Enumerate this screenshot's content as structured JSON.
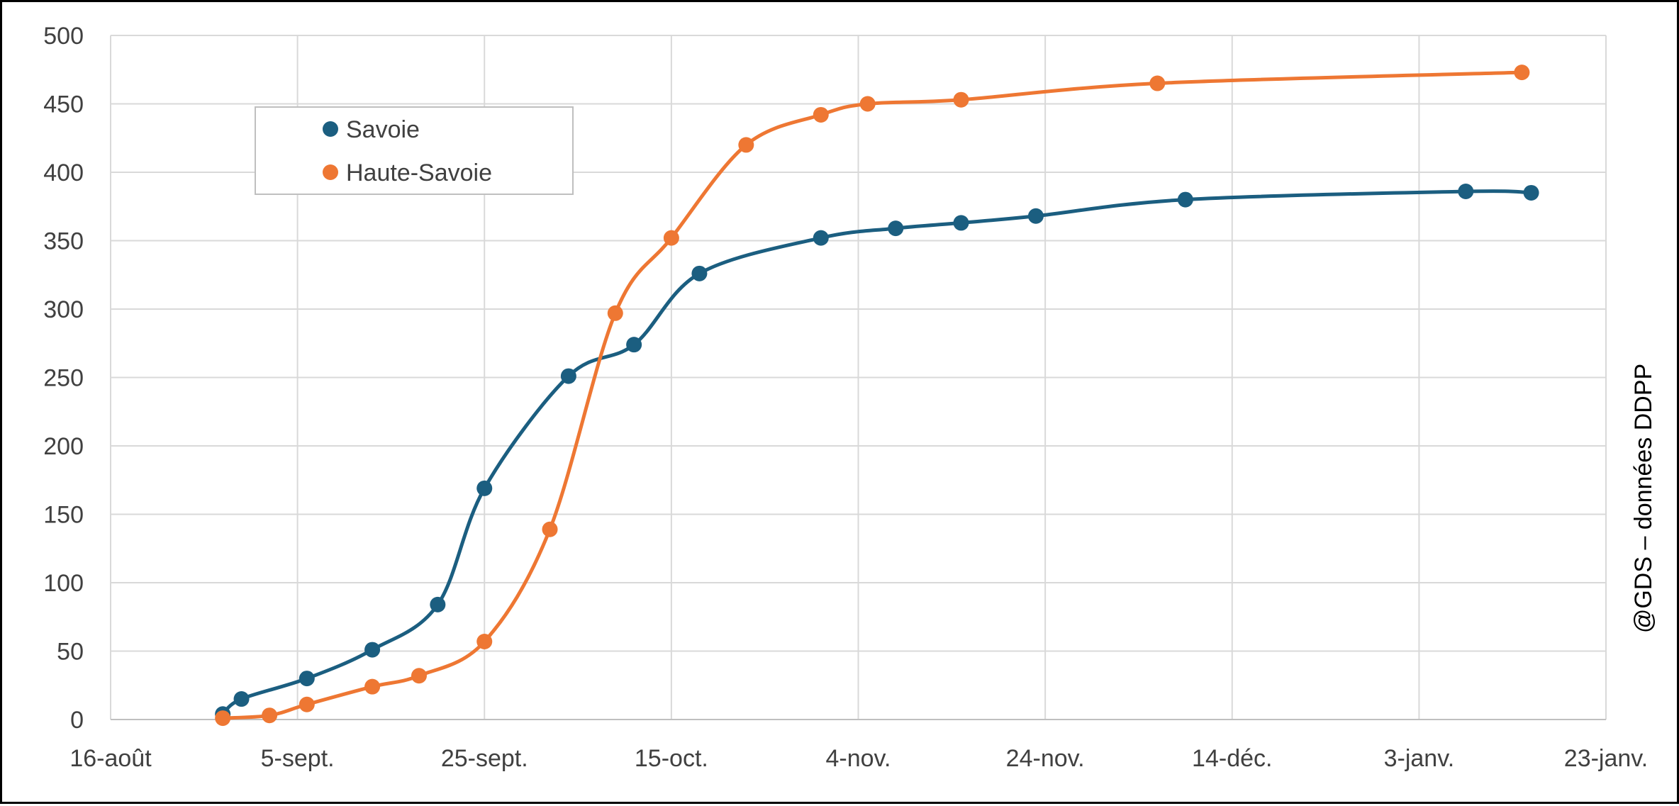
{
  "chart_data": {
    "type": "line",
    "title": "",
    "xlabel": "",
    "ylabel": "",
    "x_tick_labels": [
      "16-août",
      "5-sept.",
      "25-sept.",
      "15-oct.",
      "4-nov.",
      "24-nov.",
      "14-déc.",
      "3-janv.",
      "23-janv."
    ],
    "x_tick_dates": [
      "2023-08-16",
      "2023-09-05",
      "2023-09-25",
      "2023-10-15",
      "2023-11-04",
      "2023-11-24",
      "2023-12-14",
      "2024-01-03",
      "2024-01-23"
    ],
    "xlim": [
      "2023-08-16",
      "2024-01-23"
    ],
    "ylim": [
      0,
      500
    ],
    "y_ticks": [
      0,
      50,
      100,
      150,
      200,
      250,
      300,
      350,
      400,
      450,
      500
    ],
    "grid": true,
    "legend_position": "top-left",
    "smooth": true,
    "series": [
      {
        "name": "Savoie",
        "color": "#1b5e80",
        "points": [
          {
            "x": "2023-08-28",
            "y": 4
          },
          {
            "x": "2023-08-30",
            "y": 15
          },
          {
            "x": "2023-09-06",
            "y": 30
          },
          {
            "x": "2023-09-13",
            "y": 51
          },
          {
            "x": "2023-09-20",
            "y": 84
          },
          {
            "x": "2023-09-25",
            "y": 169
          },
          {
            "x": "2023-10-04",
            "y": 251
          },
          {
            "x": "2023-10-11",
            "y": 274
          },
          {
            "x": "2023-10-18",
            "y": 326
          },
          {
            "x": "2023-10-31",
            "y": 352
          },
          {
            "x": "2023-11-08",
            "y": 359
          },
          {
            "x": "2023-11-15",
            "y": 363
          },
          {
            "x": "2023-11-23",
            "y": 368
          },
          {
            "x": "2023-12-09",
            "y": 380
          },
          {
            "x": "2024-01-08",
            "y": 386
          },
          {
            "x": "2024-01-15",
            "y": 385
          }
        ]
      },
      {
        "name": "Haute-Savoie",
        "color": "#ee7733",
        "points": [
          {
            "x": "2023-08-28",
            "y": 1
          },
          {
            "x": "2023-09-02",
            "y": 3
          },
          {
            "x": "2023-09-06",
            "y": 11
          },
          {
            "x": "2023-09-13",
            "y": 24
          },
          {
            "x": "2023-09-18",
            "y": 32
          },
          {
            "x": "2023-09-25",
            "y": 57
          },
          {
            "x": "2023-10-02",
            "y": 139
          },
          {
            "x": "2023-10-09",
            "y": 297
          },
          {
            "x": "2023-10-15",
            "y": 352
          },
          {
            "x": "2023-10-23",
            "y": 420
          },
          {
            "x": "2023-10-31",
            "y": 442
          },
          {
            "x": "2023-11-05",
            "y": 450
          },
          {
            "x": "2023-11-15",
            "y": 453
          },
          {
            "x": "2023-12-06",
            "y": 465
          },
          {
            "x": "2024-01-14",
            "y": 473
          }
        ]
      }
    ]
  },
  "credit": {
    "text": "@GDS – données DDPP"
  }
}
